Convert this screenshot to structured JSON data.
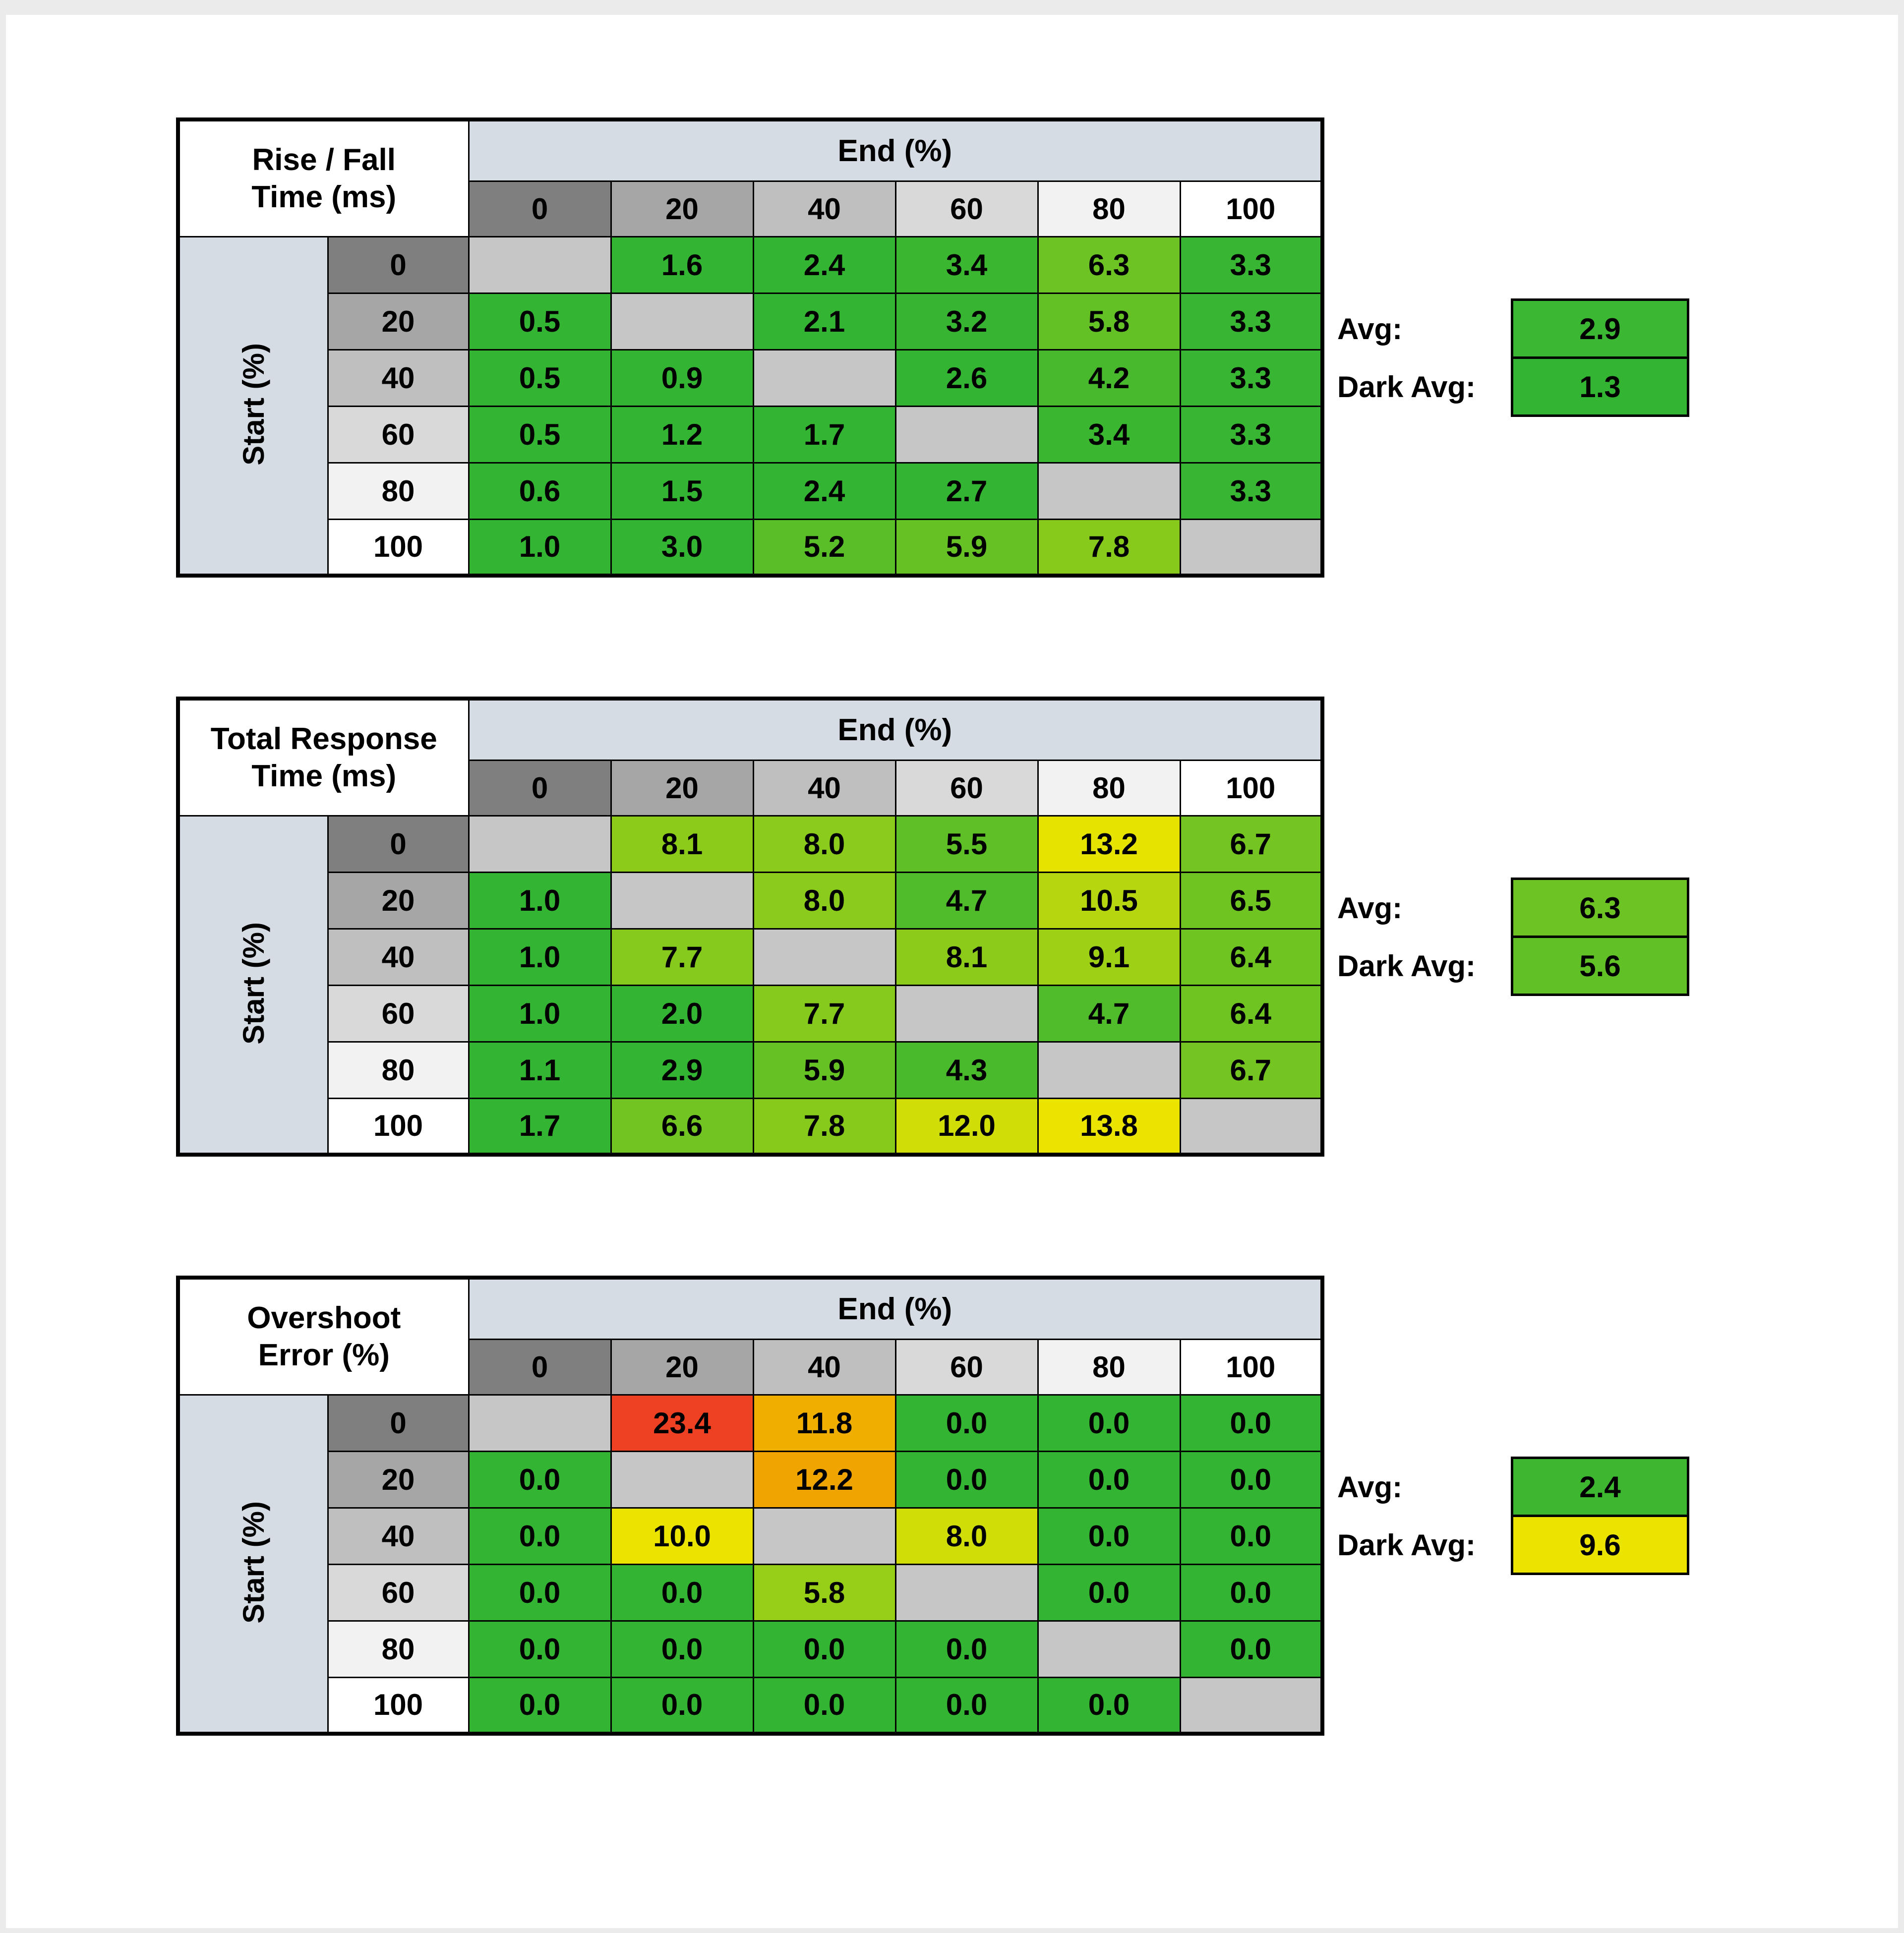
{
  "page": {
    "background": "#ffffff",
    "frame_color": "#ebebeb"
  },
  "palette": {
    "header_blue": "#d6dce4",
    "diagonal_gray": "#c6c6c6",
    "grid_line": "#000000",
    "header_grays": [
      "#7f7f7f",
      "#a6a6a6",
      "#bfbfbf",
      "#d9d9d9",
      "#f2f2f2",
      "#ffffff"
    ]
  },
  "tables": [
    {
      "name": "rise-fall",
      "title_lines": [
        "Rise / Fall",
        "Time (ms)"
      ],
      "end_axis_label": "End (%)",
      "start_axis_label": "Start (%)",
      "col_headers": [
        "0",
        "20",
        "40",
        "60",
        "80",
        "100"
      ],
      "row_headers": [
        "0",
        "20",
        "40",
        "60",
        "80",
        "100"
      ],
      "rows": [
        [
          {
            "v": "",
            "c": ""
          },
          {
            "v": "1.6",
            "c": "#33b433"
          },
          {
            "v": "2.4",
            "c": "#33b433"
          },
          {
            "v": "3.4",
            "c": "#3ab631"
          },
          {
            "v": "6.3",
            "c": "#6dc323"
          },
          {
            "v": "3.3",
            "c": "#38b532"
          }
        ],
        [
          {
            "v": "0.5",
            "c": "#33b433"
          },
          {
            "v": "",
            "c": ""
          },
          {
            "v": "2.1",
            "c": "#33b433"
          },
          {
            "v": "3.2",
            "c": "#37b532"
          },
          {
            "v": "5.8",
            "c": "#64c125"
          },
          {
            "v": "3.3",
            "c": "#38b532"
          }
        ],
        [
          {
            "v": "0.5",
            "c": "#33b433"
          },
          {
            "v": "0.9",
            "c": "#33b433"
          },
          {
            "v": "",
            "c": ""
          },
          {
            "v": "2.6",
            "c": "#33b433"
          },
          {
            "v": "4.2",
            "c": "#48b92d"
          },
          {
            "v": "3.3",
            "c": "#38b532"
          }
        ],
        [
          {
            "v": "0.5",
            "c": "#33b433"
          },
          {
            "v": "1.2",
            "c": "#33b433"
          },
          {
            "v": "1.7",
            "c": "#33b433"
          },
          {
            "v": "",
            "c": ""
          },
          {
            "v": "3.4",
            "c": "#3ab631"
          },
          {
            "v": "3.3",
            "c": "#38b532"
          }
        ],
        [
          {
            "v": "0.6",
            "c": "#33b433"
          },
          {
            "v": "1.5",
            "c": "#33b433"
          },
          {
            "v": "2.4",
            "c": "#33b433"
          },
          {
            "v": "2.7",
            "c": "#33b433"
          },
          {
            "v": "",
            "c": ""
          },
          {
            "v": "3.3",
            "c": "#38b532"
          }
        ],
        [
          {
            "v": "1.0",
            "c": "#33b433"
          },
          {
            "v": "3.0",
            "c": "#33b433"
          },
          {
            "v": "5.2",
            "c": "#5abe28"
          },
          {
            "v": "5.9",
            "c": "#66c125"
          },
          {
            "v": "7.8",
            "c": "#87ca1c"
          },
          {
            "v": "",
            "c": ""
          }
        ]
      ],
      "avg": {
        "label": "Avg:",
        "value": "2.9",
        "color": "#3cb733"
      },
      "dark_avg": {
        "label": "Dark Avg:",
        "value": "1.3",
        "color": "#33b433"
      }
    },
    {
      "name": "total-response",
      "title_lines": [
        "Total Response",
        "Time (ms)"
      ],
      "end_axis_label": "End (%)",
      "start_axis_label": "Start (%)",
      "col_headers": [
        "0",
        "20",
        "40",
        "60",
        "80",
        "100"
      ],
      "row_headers": [
        "0",
        "20",
        "40",
        "60",
        "80",
        "100"
      ],
      "rows": [
        [
          {
            "v": "",
            "c": ""
          },
          {
            "v": "8.1",
            "c": "#8ccb1a"
          },
          {
            "v": "8.0",
            "c": "#8bcb1b"
          },
          {
            "v": "5.5",
            "c": "#5fbf27"
          },
          {
            "v": "13.2",
            "c": "#e6e301"
          },
          {
            "v": "6.7",
            "c": "#74c521"
          }
        ],
        [
          {
            "v": "1.0",
            "c": "#33b433"
          },
          {
            "v": "",
            "c": ""
          },
          {
            "v": "8.0",
            "c": "#8bcb1b"
          },
          {
            "v": "4.7",
            "c": "#51bc2b"
          },
          {
            "v": "10.5",
            "c": "#b6d60f"
          },
          {
            "v": "6.5",
            "c": "#70c422"
          }
        ],
        [
          {
            "v": "1.0",
            "c": "#33b433"
          },
          {
            "v": "7.7",
            "c": "#85ca1c"
          },
          {
            "v": "",
            "c": ""
          },
          {
            "v": "8.1",
            "c": "#8ccb1a"
          },
          {
            "v": "9.1",
            "c": "#9ed015"
          },
          {
            "v": "6.4",
            "c": "#6fc422"
          }
        ],
        [
          {
            "v": "1.0",
            "c": "#33b433"
          },
          {
            "v": "2.0",
            "c": "#33b433"
          },
          {
            "v": "7.7",
            "c": "#85ca1c"
          },
          {
            "v": "",
            "c": ""
          },
          {
            "v": "4.7",
            "c": "#51bc2b"
          },
          {
            "v": "6.4",
            "c": "#6fc422"
          }
        ],
        [
          {
            "v": "1.1",
            "c": "#33b433"
          },
          {
            "v": "2.9",
            "c": "#33b433"
          },
          {
            "v": "5.9",
            "c": "#66c125"
          },
          {
            "v": "4.3",
            "c": "#4aba2d"
          },
          {
            "v": "",
            "c": ""
          },
          {
            "v": "6.7",
            "c": "#74c521"
          }
        ],
        [
          {
            "v": "1.7",
            "c": "#33b433"
          },
          {
            "v": "6.6",
            "c": "#72c422"
          },
          {
            "v": "7.8",
            "c": "#87ca1c"
          },
          {
            "v": "12.0",
            "c": "#d1dd07"
          },
          {
            "v": "13.8",
            "c": "#ebe400"
          },
          {
            "v": "",
            "c": ""
          }
        ]
      ],
      "avg": {
        "label": "Avg:",
        "value": "6.3",
        "color": "#6dc323"
      },
      "dark_avg": {
        "label": "Dark Avg:",
        "value": "5.6",
        "color": "#61c026"
      }
    },
    {
      "name": "overshoot",
      "title_lines": [
        "Overshoot",
        "Error (%)"
      ],
      "end_axis_label": "End (%)",
      "start_axis_label": "Start (%)",
      "col_headers": [
        "0",
        "20",
        "40",
        "60",
        "80",
        "100"
      ],
      "row_headers": [
        "0",
        "20",
        "40",
        "60",
        "80",
        "100"
      ],
      "rows": [
        [
          {
            "v": "",
            "c": ""
          },
          {
            "v": "23.4",
            "c": "#ee4023"
          },
          {
            "v": "11.8",
            "c": "#f0ae00"
          },
          {
            "v": "0.0",
            "c": "#33b433"
          },
          {
            "v": "0.0",
            "c": "#33b433"
          },
          {
            "v": "0.0",
            "c": "#33b433"
          }
        ],
        [
          {
            "v": "0.0",
            "c": "#33b433"
          },
          {
            "v": "",
            "c": ""
          },
          {
            "v": "12.2",
            "c": "#f0a400"
          },
          {
            "v": "0.0",
            "c": "#33b433"
          },
          {
            "v": "0.0",
            "c": "#33b433"
          },
          {
            "v": "0.0",
            "c": "#33b433"
          }
        ],
        [
          {
            "v": "0.0",
            "c": "#33b433"
          },
          {
            "v": "10.0",
            "c": "#ebe400"
          },
          {
            "v": "",
            "c": ""
          },
          {
            "v": "8.0",
            "c": "#d1dd07"
          },
          {
            "v": "0.0",
            "c": "#33b433"
          },
          {
            "v": "0.0",
            "c": "#33b433"
          }
        ],
        [
          {
            "v": "0.0",
            "c": "#33b433"
          },
          {
            "v": "0.0",
            "c": "#33b433"
          },
          {
            "v": "5.8",
            "c": "#97ce17"
          },
          {
            "v": "",
            "c": ""
          },
          {
            "v": "0.0",
            "c": "#33b433"
          },
          {
            "v": "0.0",
            "c": "#33b433"
          }
        ],
        [
          {
            "v": "0.0",
            "c": "#33b433"
          },
          {
            "v": "0.0",
            "c": "#33b433"
          },
          {
            "v": "0.0",
            "c": "#33b433"
          },
          {
            "v": "0.0",
            "c": "#33b433"
          },
          {
            "v": "",
            "c": ""
          },
          {
            "v": "0.0",
            "c": "#33b433"
          }
        ],
        [
          {
            "v": "0.0",
            "c": "#33b433"
          },
          {
            "v": "0.0",
            "c": "#33b433"
          },
          {
            "v": "0.0",
            "c": "#33b433"
          },
          {
            "v": "0.0",
            "c": "#33b433"
          },
          {
            "v": "0.0",
            "c": "#33b433"
          },
          {
            "v": "",
            "c": ""
          }
        ]
      ],
      "avg": {
        "label": "Avg:",
        "value": "2.4",
        "color": "#3db730"
      },
      "dark_avg": {
        "label": "Dark Avg:",
        "value": "9.6",
        "color": "#ebe400"
      }
    }
  ],
  "chart_data": [
    {
      "type": "heatmap",
      "title": "Rise / Fall Time (ms)",
      "xlabel": "End (%)",
      "ylabel": "Start (%)",
      "x": [
        0,
        20,
        40,
        60,
        80,
        100
      ],
      "y": [
        0,
        20,
        40,
        60,
        80,
        100
      ],
      "values": [
        [
          null,
          1.6,
          2.4,
          3.4,
          6.3,
          3.3
        ],
        [
          0.5,
          null,
          2.1,
          3.2,
          5.8,
          3.3
        ],
        [
          0.5,
          0.9,
          null,
          2.6,
          4.2,
          3.3
        ],
        [
          0.5,
          1.2,
          1.7,
          null,
          3.4,
          3.3
        ],
        [
          0.6,
          1.5,
          2.4,
          2.7,
          null,
          3.3
        ],
        [
          1.0,
          3.0,
          5.2,
          5.9,
          7.8,
          null
        ]
      ],
      "avg": 2.9,
      "dark_avg": 1.3
    },
    {
      "type": "heatmap",
      "title": "Total Response Time (ms)",
      "xlabel": "End (%)",
      "ylabel": "Start (%)",
      "x": [
        0,
        20,
        40,
        60,
        80,
        100
      ],
      "y": [
        0,
        20,
        40,
        60,
        80,
        100
      ],
      "values": [
        [
          null,
          8.1,
          8.0,
          5.5,
          13.2,
          6.7
        ],
        [
          1.0,
          null,
          8.0,
          4.7,
          10.5,
          6.5
        ],
        [
          1.0,
          7.7,
          null,
          8.1,
          9.1,
          6.4
        ],
        [
          1.0,
          2.0,
          7.7,
          null,
          4.7,
          6.4
        ],
        [
          1.1,
          2.9,
          5.9,
          4.3,
          null,
          6.7
        ],
        [
          1.7,
          6.6,
          7.8,
          12.0,
          13.8,
          null
        ]
      ],
      "avg": 6.3,
      "dark_avg": 5.6
    },
    {
      "type": "heatmap",
      "title": "Overshoot Error (%)",
      "xlabel": "End (%)",
      "ylabel": "Start (%)",
      "x": [
        0,
        20,
        40,
        60,
        80,
        100
      ],
      "y": [
        0,
        20,
        40,
        60,
        80,
        100
      ],
      "values": [
        [
          null,
          23.4,
          11.8,
          0.0,
          0.0,
          0.0
        ],
        [
          0.0,
          null,
          12.2,
          0.0,
          0.0,
          0.0
        ],
        [
          0.0,
          10.0,
          null,
          8.0,
          0.0,
          0.0
        ],
        [
          0.0,
          0.0,
          5.8,
          null,
          0.0,
          0.0
        ],
        [
          0.0,
          0.0,
          0.0,
          0.0,
          null,
          0.0
        ],
        [
          0.0,
          0.0,
          0.0,
          0.0,
          0.0,
          null
        ]
      ],
      "avg": 2.4,
      "dark_avg": 9.6
    }
  ]
}
